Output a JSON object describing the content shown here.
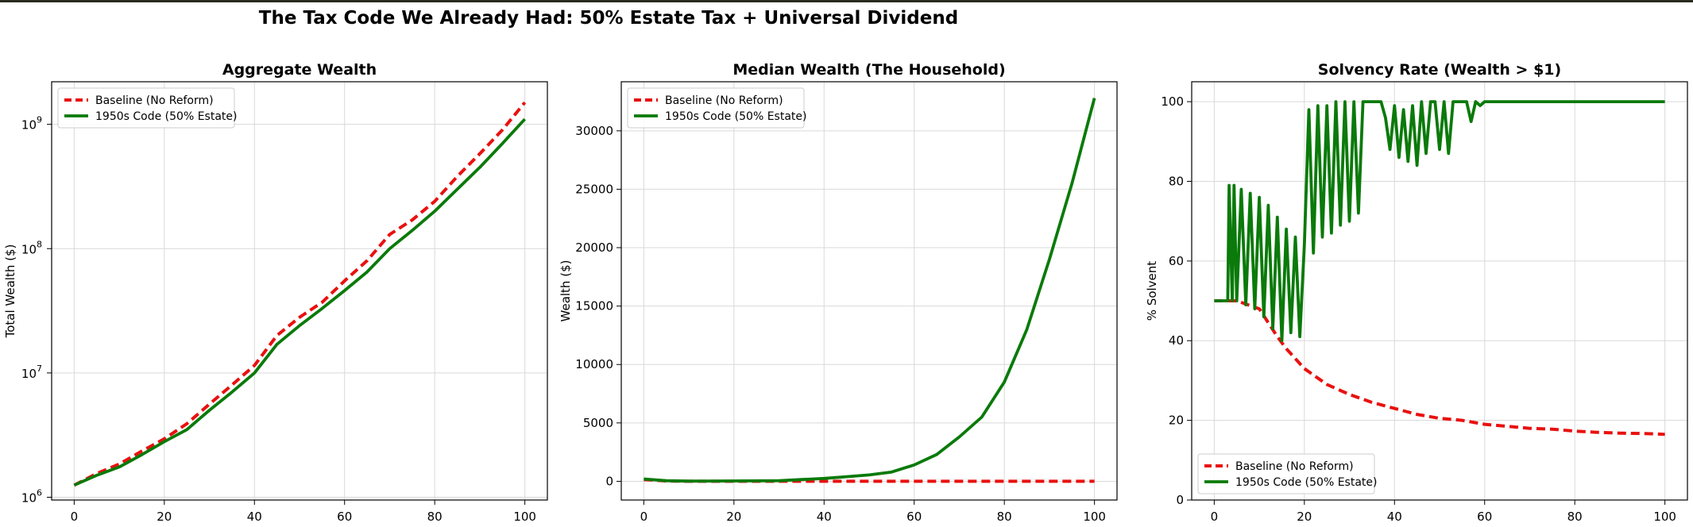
{
  "figure": {
    "suptitle": "The Tax Code We Already Had: 50% Estate Tax + Universal Dividend"
  },
  "colors": {
    "baseline": "#e8110f",
    "reform": "#0a7a0a",
    "grid": "#d9d9d9"
  },
  "chart_data": [
    {
      "type": "line",
      "title": "Aggregate Wealth",
      "xlabel": "",
      "ylabel": "Total Wealth ($)",
      "yscale": "log",
      "xlim": [
        -5,
        105
      ],
      "ylim": [
        950000,
        2200000000
      ],
      "xticks": [
        0,
        20,
        40,
        60,
        80,
        100
      ],
      "yticks": [
        1000000,
        10000000,
        100000000,
        1000000000
      ],
      "ytick_bases": [
        "10",
        "10",
        "10",
        "10"
      ],
      "ytick_exps": [
        "6",
        "7",
        "8",
        "9"
      ],
      "grid": true,
      "legend": "top-left",
      "series": [
        {
          "name": "Baseline (No Reform)",
          "style": "dashed",
          "color": "#e8110f",
          "x": [
            0,
            5,
            10,
            15,
            20,
            25,
            30,
            35,
            40,
            45,
            50,
            55,
            60,
            65,
            70,
            75,
            80,
            85,
            90,
            95,
            100
          ],
          "y": [
            1250000,
            1550000,
            1850000,
            2350000,
            2950000,
            3900000,
            5600000,
            8000000,
            11500000,
            20000000,
            28000000,
            37000000,
            55000000,
            80000000,
            130000000,
            170000000,
            240000000,
            380000000,
            580000000,
            900000000,
            1500000000
          ]
        },
        {
          "name": "1950s Code (50% Estate)",
          "style": "solid",
          "color": "#0a7a0a",
          "x": [
            0,
            5,
            10,
            15,
            20,
            25,
            30,
            35,
            40,
            45,
            50,
            55,
            60,
            65,
            70,
            75,
            80,
            85,
            90,
            95,
            100
          ],
          "y": [
            1250000,
            1500000,
            1750000,
            2200000,
            2800000,
            3500000,
            5000000,
            7000000,
            10000000,
            17000000,
            24000000,
            33000000,
            46000000,
            65000000,
            100000000,
            140000000,
            200000000,
            300000000,
            450000000,
            700000000,
            1100000000
          ]
        }
      ]
    },
    {
      "type": "line",
      "title": "Median Wealth (The Household)",
      "xlabel": "",
      "ylabel": "Wealth ($)",
      "yscale": "linear",
      "xlim": [
        -5,
        105
      ],
      "ylim": [
        -1600,
        34200
      ],
      "xticks": [
        0,
        20,
        40,
        60,
        80,
        100
      ],
      "yticks": [
        0,
        5000,
        10000,
        15000,
        20000,
        25000,
        30000
      ],
      "grid": true,
      "legend": "top-left",
      "series": [
        {
          "name": "Baseline (No Reform)",
          "style": "dashed",
          "color": "#e8110f",
          "x": [
            0,
            5,
            10,
            20,
            30,
            35,
            40,
            50,
            60,
            70,
            80,
            90,
            100
          ],
          "y": [
            150,
            30,
            0,
            0,
            0,
            0,
            0,
            0,
            0,
            0,
            0,
            0,
            0
          ]
        },
        {
          "name": "1950s Code (50% Estate)",
          "style": "solid",
          "color": "#0a7a0a",
          "x": [
            0,
            5,
            10,
            20,
            30,
            35,
            40,
            45,
            50,
            55,
            60,
            65,
            70,
            75,
            80,
            85,
            90,
            95,
            100
          ],
          "y": [
            200,
            50,
            20,
            30,
            50,
            150,
            250,
            400,
            550,
            800,
            1400,
            2300,
            3800,
            5500,
            8500,
            13000,
            19000,
            25500,
            32800
          ]
        }
      ]
    },
    {
      "type": "line",
      "title": "Solvency Rate (Wealth > $1)",
      "xlabel": "",
      "ylabel": "% Solvent",
      "yscale": "linear",
      "xlim": [
        -5,
        105
      ],
      "ylim": [
        0,
        105
      ],
      "xticks": [
        0,
        20,
        40,
        60,
        80,
        100
      ],
      "yticks": [
        0,
        20,
        40,
        60,
        80,
        100
      ],
      "grid": true,
      "legend": "bottom-left",
      "series": [
        {
          "name": "Baseline (No Reform)",
          "style": "dashed",
          "color": "#e8110f",
          "x": [
            0,
            5,
            10,
            14,
            16,
            20,
            25,
            30,
            35,
            40,
            45,
            50,
            55,
            60,
            65,
            70,
            75,
            80,
            85,
            90,
            95,
            100
          ],
          "y": [
            50,
            50,
            48,
            41,
            38,
            33,
            29,
            26.5,
            24.5,
            23,
            21.5,
            20.5,
            20,
            19,
            18.5,
            18,
            17.8,
            17.3,
            17,
            16.8,
            16.7,
            16.5
          ]
        },
        {
          "name": "1950s Code (50% Estate)",
          "style": "solid",
          "color": "#0a7a0a",
          "x": [
            0,
            3,
            3.3,
            4,
            4.4,
            5,
            6,
            7,
            8,
            9,
            10,
            11,
            12,
            13,
            14,
            15,
            16,
            17,
            18,
            19,
            20,
            21,
            22,
            23,
            24,
            25,
            26,
            27,
            28,
            29,
            30,
            31,
            32,
            33,
            34,
            35,
            36,
            37,
            38,
            39,
            40,
            41,
            42,
            43,
            44,
            45,
            46,
            47,
            48,
            49,
            50,
            51,
            52,
            53,
            54,
            55,
            56,
            57,
            58,
            59,
            60,
            70,
            80,
            90,
            100
          ],
          "y": [
            50,
            50,
            79,
            50,
            79,
            50,
            78,
            49,
            77,
            48,
            76,
            46,
            74,
            43,
            71,
            40,
            68,
            42,
            66,
            41,
            64,
            98,
            62,
            99,
            66,
            99,
            67,
            100,
            69,
            100,
            70,
            100,
            72,
            100,
            100,
            100,
            100,
            100,
            96,
            88,
            99,
            86,
            98,
            85,
            99,
            84,
            100,
            87,
            100,
            100,
            88,
            100,
            87,
            100,
            100,
            100,
            100,
            95,
            100,
            99,
            100,
            100,
            100,
            100,
            100
          ]
        }
      ]
    }
  ]
}
